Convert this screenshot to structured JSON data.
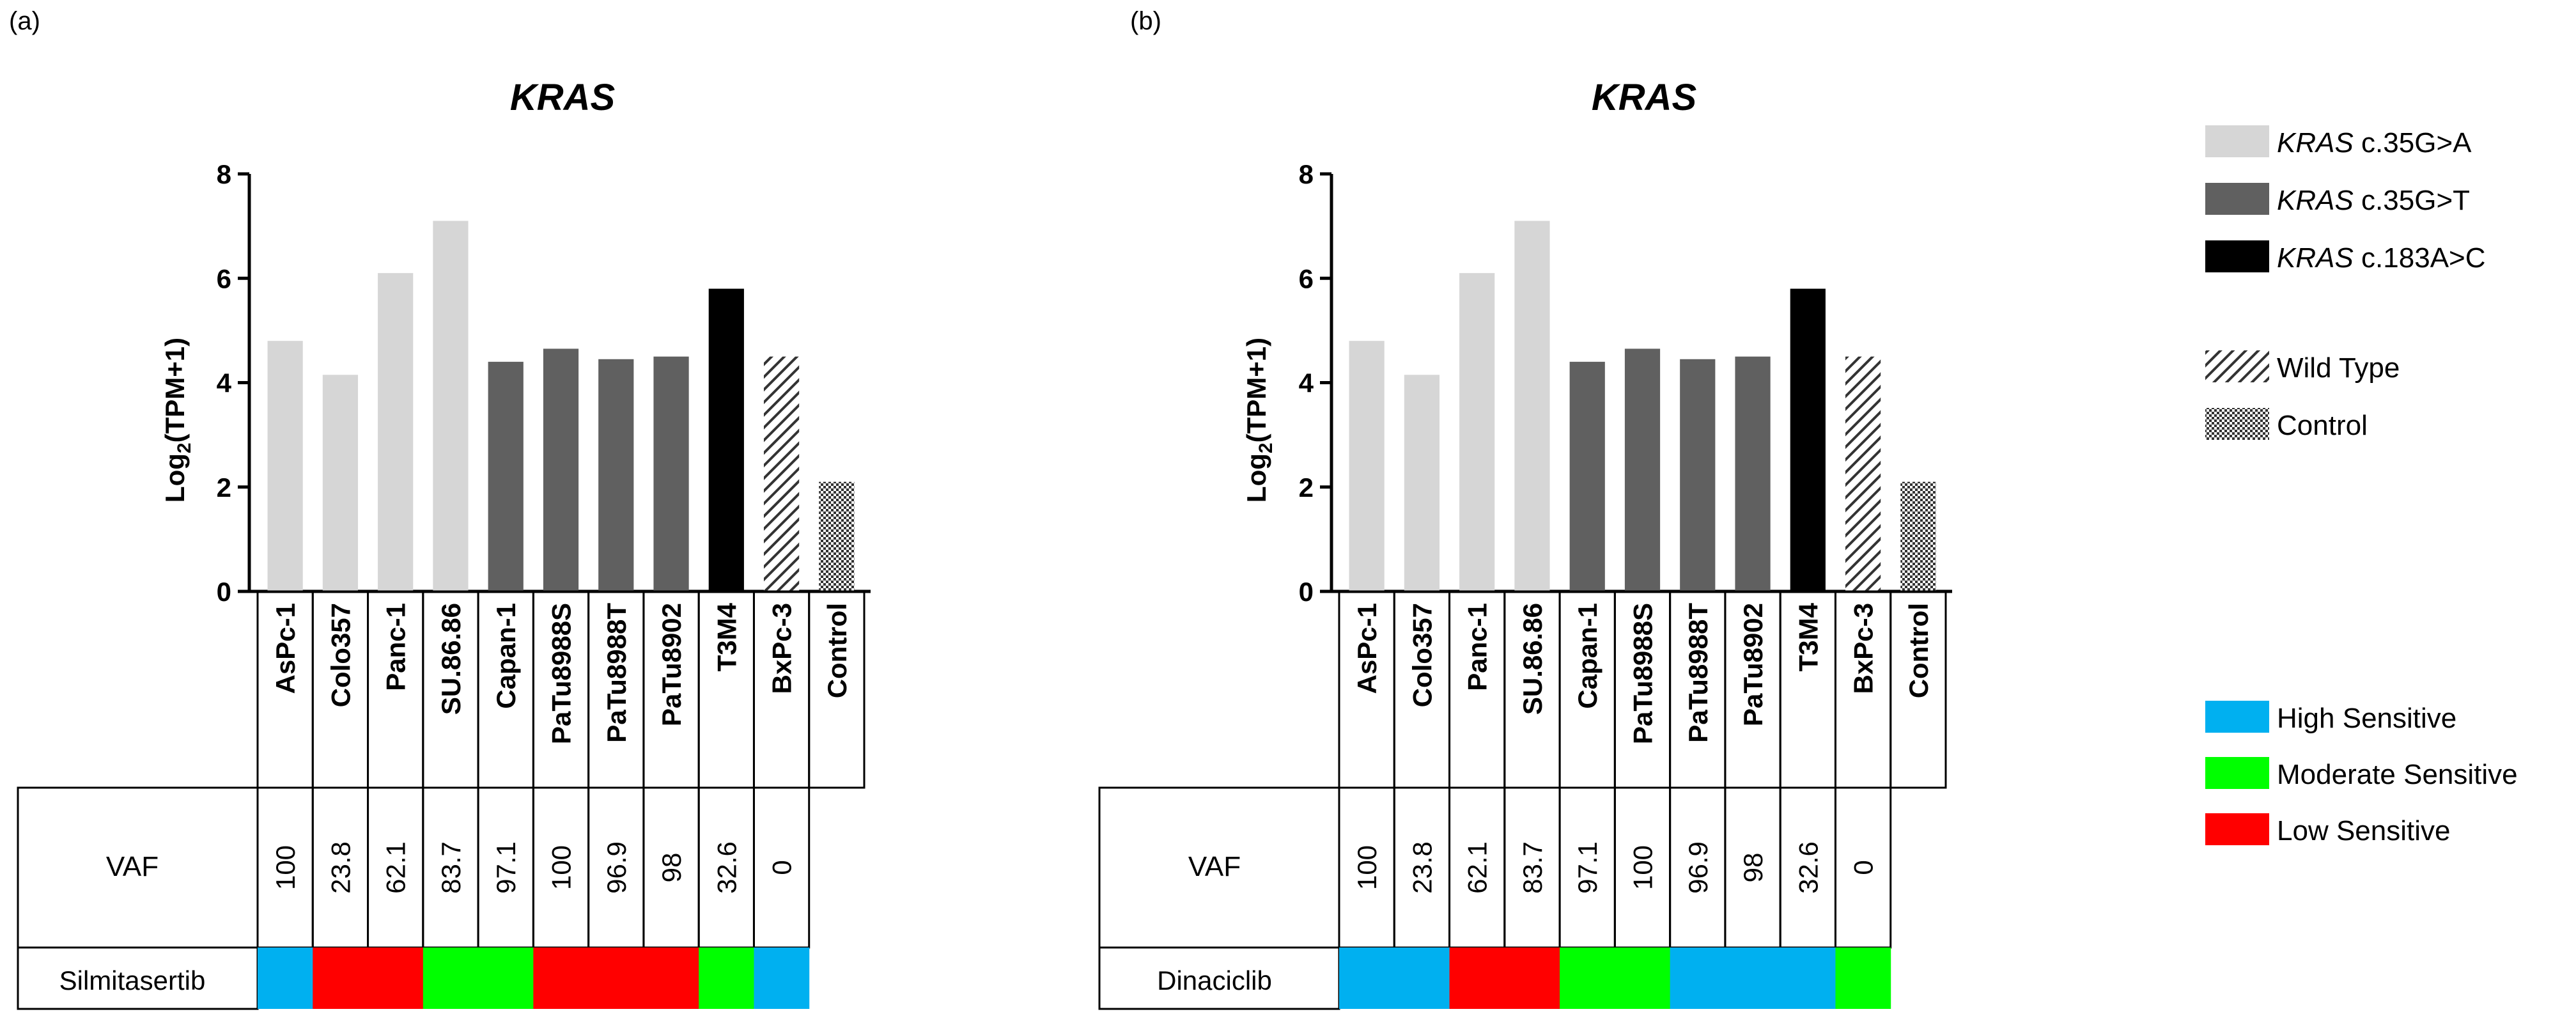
{
  "panel_labels": [
    "(a)",
    "(b)"
  ],
  "legend": {
    "mutations": [
      {
        "gene": "KRAS",
        "variant": " c.35G>A",
        "color": "#d6d6d6",
        "pattern": "solid"
      },
      {
        "gene": "KRAS",
        "variant": " c.35G>T",
        "color": "#606060",
        "pattern": "solid"
      },
      {
        "gene": "KRAS",
        "variant": " c.183A>C",
        "color": "#000000",
        "pattern": "solid"
      },
      {
        "gene": "",
        "variant": "Wild Type",
        "color": "#333333",
        "pattern": "hatch"
      },
      {
        "gene": "",
        "variant": "Control",
        "color": "#333333",
        "pattern": "checker"
      }
    ],
    "sensitivity": [
      {
        "label": "High Sensitive",
        "color": "#00b0f0"
      },
      {
        "label": "Moderate Sensitive",
        "color": "#00ff00"
      },
      {
        "label": "Low Sensitive",
        "color": "#ff0000"
      }
    ]
  },
  "vaf_label": "VAF",
  "sensitivity_colors": {
    "High": "#00b0f0",
    "Moderate": "#00ff00",
    "Low": "#ff0000"
  },
  "chart_data": [
    {
      "type": "bar",
      "title": "KRAS",
      "ylabel_main": "Log",
      "ylabel_sub": "2",
      "ylabel_rest": "(TPM+1)",
      "ylim": [
        0,
        8
      ],
      "yticks": [
        "0",
        "2",
        "4",
        "6",
        "8"
      ],
      "categories": [
        "AsPc-1",
        "Colo357",
        "Panc-1",
        "SU.86.86",
        "Capan-1",
        "PaTu8988S",
        "PaTu8988T",
        "PaTu8902",
        "T3M4",
        "BxPc-3",
        "Control"
      ],
      "values": [
        4.8,
        4.15,
        6.1,
        7.1,
        4.4,
        4.65,
        4.45,
        4.5,
        5.8,
        4.5,
        2.1
      ],
      "groups": [
        "c.35G>A",
        "c.35G>A",
        "c.35G>A",
        "c.35G>A",
        "c.35G>T",
        "c.35G>T",
        "c.35G>T",
        "c.35G>T",
        "c.183A>C",
        "Wild Type",
        "Control"
      ],
      "vaf": [
        "100",
        "23.8",
        "62.1",
        "83.7",
        "97.1",
        "100",
        "96.9",
        "98",
        "32.6",
        "0"
      ],
      "drug": "Silmitasertib",
      "sensitivity": [
        "High",
        "Low",
        "Low",
        "Moderate",
        "Moderate",
        "Low",
        "Low",
        "Low",
        "Moderate",
        "High"
      ]
    },
    {
      "type": "bar",
      "title": "KRAS",
      "ylabel_main": "Log",
      "ylabel_sub": "2",
      "ylabel_rest": "(TPM+1)",
      "ylim": [
        0,
        8
      ],
      "yticks": [
        "0",
        "2",
        "4",
        "6",
        "8"
      ],
      "categories": [
        "AsPc-1",
        "Colo357",
        "Panc-1",
        "SU.86.86",
        "Capan-1",
        "PaTu8988S",
        "PaTu8988T",
        "PaTu8902",
        "T3M4",
        "BxPc-3",
        "Control"
      ],
      "values": [
        4.8,
        4.15,
        6.1,
        7.1,
        4.4,
        4.65,
        4.45,
        4.5,
        5.8,
        4.5,
        2.1
      ],
      "groups": [
        "c.35G>A",
        "c.35G>A",
        "c.35G>A",
        "c.35G>A",
        "c.35G>T",
        "c.35G>T",
        "c.35G>T",
        "c.35G>T",
        "c.183A>C",
        "Wild Type",
        "Control"
      ],
      "vaf": [
        "100",
        "23.8",
        "62.1",
        "83.7",
        "97.1",
        "100",
        "96.9",
        "98",
        "32.6",
        "0"
      ],
      "drug": "Dinaciclib",
      "sensitivity": [
        "High",
        "High",
        "Low",
        "Low",
        "Moderate",
        "Moderate",
        "High",
        "High",
        "High",
        "Moderate"
      ]
    }
  ]
}
